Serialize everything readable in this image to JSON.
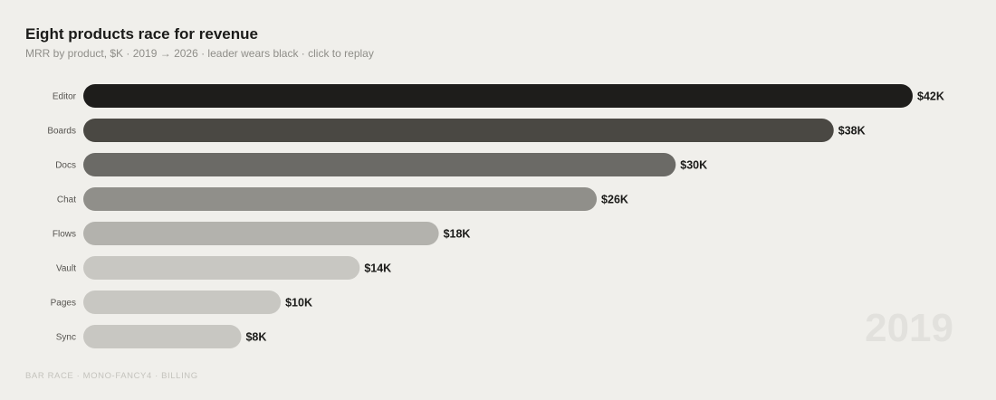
{
  "chart_data": {
    "type": "bar",
    "orientation": "horizontal",
    "title": "Eight products race for revenue",
    "subtitle": "MRR by product, $K · 2019 → 2026 · leader wears black · click to replay",
    "categories": [
      "Editor",
      "Boards",
      "Docs",
      "Chat",
      "Flows",
      "Vault",
      "Pages",
      "Sync"
    ],
    "values": [
      42,
      38,
      30,
      26,
      18,
      14,
      10,
      8
    ],
    "value_labels": [
      "$42K",
      "$38K",
      "$30K",
      "$26K",
      "$18K",
      "$14K",
      "$10K",
      "$8K"
    ],
    "xlim": [
      0,
      42
    ],
    "year": "2019",
    "grid": false,
    "legend": "none",
    "colors": [
      "#1e1d1b",
      "#4a4843",
      "#6b6a66",
      "#908f8a",
      "#b3b2ad",
      "#c8c7c2",
      "#c8c7c2",
      "#c8c7c2"
    ]
  },
  "footer": "BAR RACE · MONO-FANCY4 · BILLING",
  "colors": {
    "background": "#f0efeb",
    "text": "#1b1b19",
    "muted": "#8f8e89",
    "year_watermark": "#e2e1dd"
  }
}
